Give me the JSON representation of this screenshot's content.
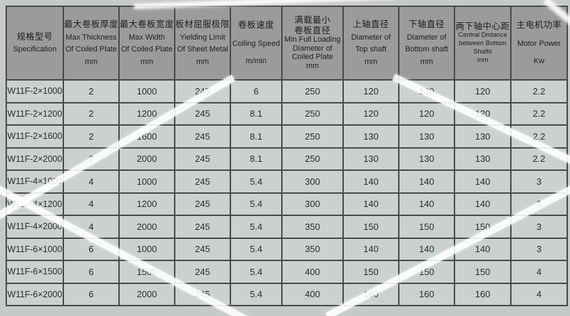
{
  "colors": {
    "page-bg": "#c5c9c8",
    "header-bg": "#9c9b9c",
    "cell-bg": "#cad1d0",
    "grid-line": "#48484a",
    "outer-line": "#3a3a3c",
    "header-text": "#1c1c1e",
    "cell-text": "#2a2a2c"
  },
  "table": {
    "columns": [
      {
        "key": "specification",
        "lines": [
          "规格型号",
          "Specification"
        ]
      },
      {
        "key": "max-thickness",
        "lines": [
          "最大卷板厚度",
          "Max Thickness",
          "Of Coiled Plate",
          "mm"
        ]
      },
      {
        "key": "max-width",
        "lines": [
          "最大卷板宽度",
          "Max Width",
          "Of Coiled Plate",
          "mm"
        ]
      },
      {
        "key": "yielding-limit",
        "lines": [
          "板材屈服极限",
          "Yielding Limit",
          "Of Sheet Metal",
          "mm"
        ]
      },
      {
        "key": "coiling-speed",
        "lines": [
          "卷板速度",
          "",
          "Coiling Speed",
          "",
          "m/min"
        ]
      },
      {
        "key": "min-diameter",
        "lines": [
          "满载最小",
          "卷板直径",
          "Min Full Loading",
          "Diameter of",
          "Coiled Plate",
          "mm"
        ],
        "style": "xtight"
      },
      {
        "key": "top-shaft",
        "lines": [
          "上轴直径",
          "Diameter of",
          "Top shaft",
          "mm"
        ]
      },
      {
        "key": "bottom-shaft",
        "lines": [
          "下轴直径",
          "Diameter of",
          "Bottom shaft",
          "mm"
        ]
      },
      {
        "key": "central-distance",
        "lines": [
          "两下轴中心距",
          "Central Distance",
          "between Bottom",
          "Shafts",
          "mm"
        ],
        "style": "tight",
        "small_en": true
      },
      {
        "key": "motor-power",
        "lines": [
          "主电机功率",
          "",
          "Motor Power",
          "",
          "Kw"
        ]
      }
    ],
    "rows": [
      {
        "model": "W11F-2×1000",
        "values": [
          "2",
          "1000",
          "245",
          "6",
          "250",
          "120",
          "120",
          "120",
          "2.2"
        ]
      },
      {
        "model": "W11F-2×1200",
        "values": [
          "2",
          "1200",
          "245",
          "8.1",
          "250",
          "120",
          "120",
          "120",
          "2.2"
        ]
      },
      {
        "model": "W11F-2×1600",
        "values": [
          "2",
          "1600",
          "245",
          "8.1",
          "250",
          "130",
          "130",
          "130",
          "2.2"
        ]
      },
      {
        "model": "W11F-2×2000",
        "values": [
          "2",
          "2000",
          "245",
          "8.1",
          "250",
          "130",
          "130",
          "130",
          "2.2"
        ]
      },
      {
        "model": "W11F-4×1000",
        "values": [
          "4",
          "1000",
          "245",
          "5.4",
          "300",
          "140",
          "140",
          "140",
          "3"
        ]
      },
      {
        "model": "W11F-4×1200",
        "values": [
          "4",
          "1200",
          "245",
          "5.4",
          "300",
          "140",
          "140",
          "140",
          "3"
        ]
      },
      {
        "model": "W11F-4×2000",
        "values": [
          "4",
          "2000",
          "245",
          "5.4",
          "350",
          "150",
          "150",
          "150",
          "3"
        ]
      },
      {
        "model": "W11F-6×1000",
        "values": [
          "6",
          "1000",
          "245",
          "5.4",
          "350",
          "140",
          "140",
          "140",
          "3"
        ]
      },
      {
        "model": "W11F-6×1500",
        "values": [
          "6",
          "1500",
          "245",
          "5.4",
          "400",
          "150",
          "150",
          "150",
          "4"
        ]
      },
      {
        "model": "W11F-6×2000",
        "values": [
          "6",
          "2000",
          "245",
          "5.4",
          "400",
          "160",
          "160",
          "160",
          "4"
        ]
      }
    ]
  }
}
